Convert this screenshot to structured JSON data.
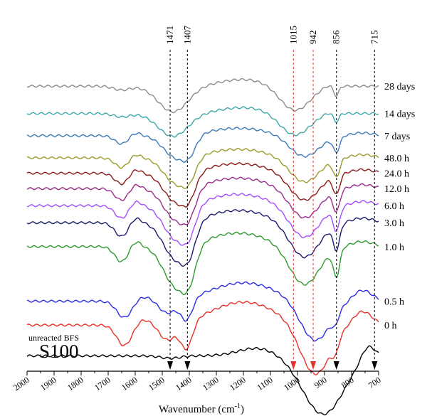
{
  "chart_data": {
    "type": "line",
    "panel_label": "S100",
    "xlabel": "Wavenumber (cm",
    "xlabel_sup": "-1",
    "xlabel_close": ")",
    "xlim": [
      2000,
      700
    ],
    "x_ticks": [
      2000,
      1900,
      1800,
      1700,
      1600,
      1500,
      1400,
      1300,
      1200,
      1100,
      1000,
      900,
      800,
      700
    ],
    "grid": false,
    "y_axis": "offset absorbance, unlabeled",
    "markers": [
      {
        "label": "1471",
        "x": 1471,
        "color": "#000000"
      },
      {
        "label": "1407",
        "x": 1407,
        "color": "#000000"
      },
      {
        "label": "1015",
        "x": 1015,
        "color": "#e8302a"
      },
      {
        "label": "942",
        "x": 942,
        "color": "#e8302a"
      },
      {
        "label": "856",
        "x": 856,
        "color": "#000000"
      },
      {
        "label": "715",
        "x": 715,
        "color": "#000000"
      }
    ],
    "series": [
      {
        "name": "28 days",
        "color": "#8c8c8c",
        "offset": 9.6,
        "kind": "late",
        "depth": 0.62
      },
      {
        "name": "14 days",
        "color": "#3ea7a7",
        "offset": 8.8,
        "kind": "late",
        "depth": 0.55
      },
      {
        "name": "7 days",
        "color": "#3a7ab8",
        "offset": 8.15,
        "kind": "mid",
        "depth": 0.6
      },
      {
        "name": "48.0 h",
        "color": "#9a9a2a",
        "offset": 7.5,
        "kind": "mid",
        "depth": 0.7
      },
      {
        "name": "24.0 h",
        "color": "#8b1a1a",
        "offset": 7.05,
        "kind": "mid",
        "depth": 0.78
      },
      {
        "name": "12.0 h",
        "color": "#9b2a8a",
        "offset": 6.6,
        "kind": "mid",
        "depth": 0.85
      },
      {
        "name": "6.0 h",
        "color": "#a64dff",
        "offset": 6.1,
        "kind": "mid",
        "depth": 0.92
      },
      {
        "name": "3.0 h",
        "color": "#1a1a6e",
        "offset": 5.6,
        "kind": "mid",
        "depth": 1.0
      },
      {
        "name": "1.0 h",
        "color": "#2e9a2e",
        "offset": 4.9,
        "kind": "mid",
        "depth": 1.1
      },
      {
        "name": "0.5 h",
        "color": "#2a2ae6",
        "offset": 3.3,
        "kind": "early",
        "depth": 1.2
      },
      {
        "name": "0 h",
        "color": "#e8302a",
        "offset": 2.6,
        "kind": "early",
        "depth": 1.5
      },
      {
        "name": "unreacted BFS",
        "color": "#000000",
        "offset": 1.7,
        "kind": "raw",
        "depth": 1.0
      }
    ]
  }
}
